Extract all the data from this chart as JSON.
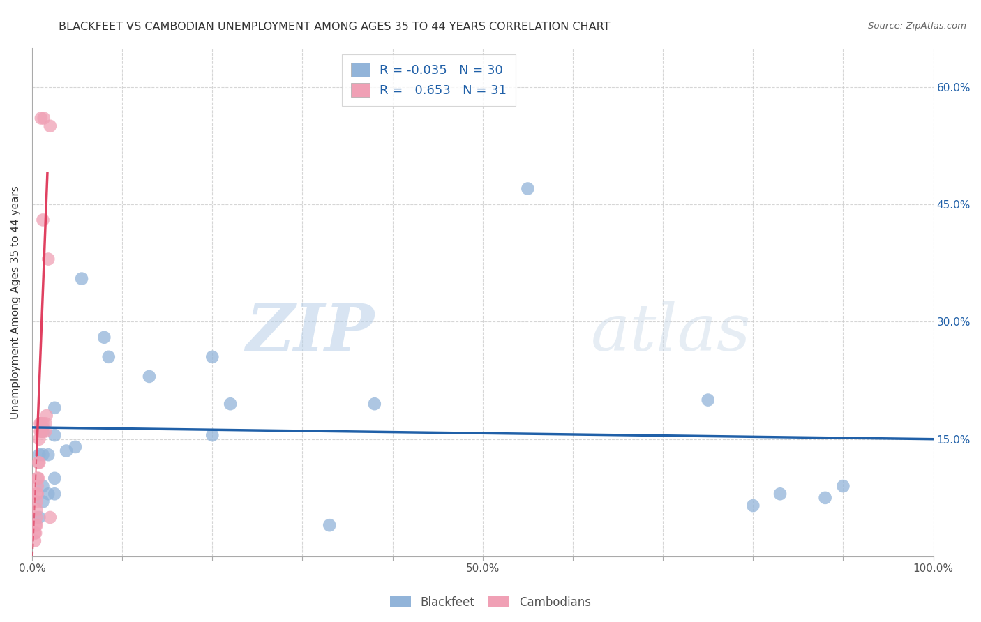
{
  "title": "BLACKFEET VS CAMBODIAN UNEMPLOYMENT AMONG AGES 35 TO 44 YEARS CORRELATION CHART",
  "source": "Source: ZipAtlas.com",
  "ylabel": "Unemployment Among Ages 35 to 44 years",
  "watermark_zip": "ZIP",
  "watermark_atlas": "atlas",
  "xlim": [
    0.0,
    1.0
  ],
  "ylim": [
    0.0,
    0.65
  ],
  "blackfeet_color": "#92b4d9",
  "cambodian_color": "#f0a0b5",
  "blackfeet_R": -0.035,
  "blackfeet_N": 30,
  "cambodian_R": 0.653,
  "cambodian_N": 31,
  "blackfeet_line_color": "#2060a8",
  "cambodian_line_color": "#e04060",
  "grid_color": "#cccccc",
  "blackfeet_x": [
    0.008,
    0.012,
    0.012,
    0.018,
    0.025,
    0.025,
    0.008,
    0.012,
    0.018,
    0.012,
    0.012,
    0.025,
    0.025,
    0.055,
    0.085,
    0.13,
    0.2,
    0.22,
    0.38,
    0.75,
    0.83,
    0.9,
    0.038,
    0.048,
    0.8,
    0.88,
    0.33,
    0.55,
    0.2,
    0.08
  ],
  "blackfeet_y": [
    0.05,
    0.07,
    0.09,
    0.08,
    0.08,
    0.1,
    0.13,
    0.13,
    0.13,
    0.16,
    0.165,
    0.155,
    0.19,
    0.355,
    0.255,
    0.23,
    0.255,
    0.195,
    0.195,
    0.2,
    0.08,
    0.09,
    0.135,
    0.14,
    0.065,
    0.075,
    0.04,
    0.47,
    0.155,
    0.28
  ],
  "cambodian_x": [
    0.003,
    0.003,
    0.004,
    0.004,
    0.005,
    0.005,
    0.005,
    0.005,
    0.005,
    0.006,
    0.006,
    0.006,
    0.007,
    0.007,
    0.008,
    0.008,
    0.009,
    0.009,
    0.01,
    0.01,
    0.01,
    0.012,
    0.012,
    0.012,
    0.013,
    0.015,
    0.015,
    0.016,
    0.018,
    0.02,
    0.02
  ],
  "cambodian_y": [
    0.02,
    0.03,
    0.03,
    0.04,
    0.04,
    0.05,
    0.06,
    0.07,
    0.08,
    0.08,
    0.09,
    0.1,
    0.1,
    0.12,
    0.12,
    0.15,
    0.16,
    0.17,
    0.16,
    0.17,
    0.56,
    0.16,
    0.17,
    0.43,
    0.56,
    0.16,
    0.17,
    0.18,
    0.38,
    0.55,
    0.05
  ],
  "background_color": "#ffffff",
  "legend_R_color": "#e04060",
  "legend_N_color": "#2060a8"
}
